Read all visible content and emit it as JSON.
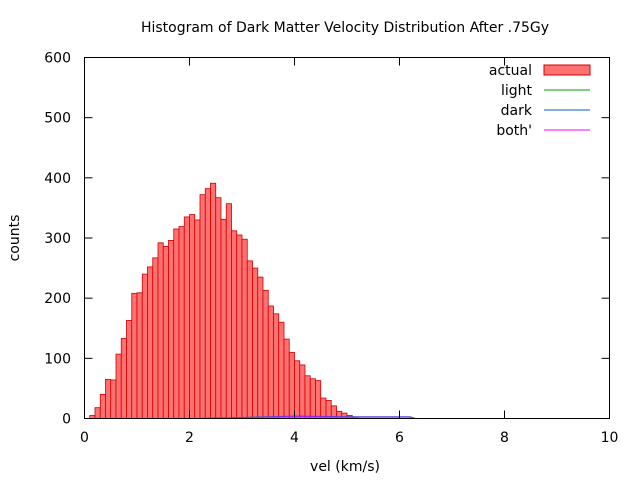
{
  "chart_data": {
    "type": "bar",
    "title": "Histogram of Dark Matter Velocity Distribution After .75Gy",
    "xlabel": "vel (km/s)",
    "ylabel": "counts",
    "xlim": [
      0,
      10
    ],
    "ylim": [
      0,
      600
    ],
    "xticks": [
      0,
      2,
      4,
      6,
      8,
      10
    ],
    "yticks": [
      0,
      100,
      200,
      300,
      400,
      500,
      600
    ],
    "bin_width": 0.1,
    "grid": false,
    "legend_position": "top-right",
    "series": [
      {
        "name": "actual",
        "style": "histogram",
        "color": "#ff7070",
        "edge_color": "#d00000",
        "x": [
          0.1,
          0.2,
          0.3,
          0.4,
          0.5,
          0.6,
          0.7,
          0.8,
          0.9,
          1.0,
          1.1,
          1.2,
          1.3,
          1.4,
          1.5,
          1.6,
          1.7,
          1.8,
          1.9,
          2.0,
          2.1,
          2.2,
          2.3,
          2.4,
          2.5,
          2.6,
          2.7,
          2.8,
          2.9,
          3.0,
          3.1,
          3.2,
          3.3,
          3.4,
          3.5,
          3.6,
          3.7,
          3.8,
          3.9,
          4.0,
          4.1,
          4.2,
          4.3,
          4.4,
          4.5,
          4.6,
          4.7,
          4.8,
          4.9,
          5.0,
          5.1
        ],
        "values": [
          5,
          18,
          40,
          65,
          64,
          107,
          133,
          163,
          208,
          209,
          240,
          252,
          267,
          292,
          286,
          296,
          315,
          319,
          335,
          339,
          330,
          372,
          382,
          391,
          367,
          331,
          357,
          312,
          305,
          298,
          262,
          250,
          235,
          213,
          187,
          174,
          160,
          132,
          110,
          96,
          89,
          71,
          66,
          63,
          34,
          30,
          21,
          12,
          9,
          5,
          2
        ]
      },
      {
        "name": "light",
        "style": "line",
        "color": "#00a000",
        "x": [
          0,
          10
        ],
        "values": [
          0,
          0
        ]
      },
      {
        "name": "dark",
        "style": "line",
        "color": "#0060c0",
        "x": [
          0,
          2.2,
          4.0,
          5.2,
          6.2,
          6.3,
          10
        ],
        "values": [
          0,
          0,
          4,
          3,
          3,
          0,
          0
        ]
      },
      {
        "name": "both'",
        "style": "line",
        "color": "#ff00ff",
        "x": [
          0,
          2.2,
          4.0,
          5.2,
          6.2,
          6.3,
          10
        ],
        "values": [
          0,
          0,
          3,
          2,
          2,
          0,
          0
        ]
      }
    ]
  }
}
